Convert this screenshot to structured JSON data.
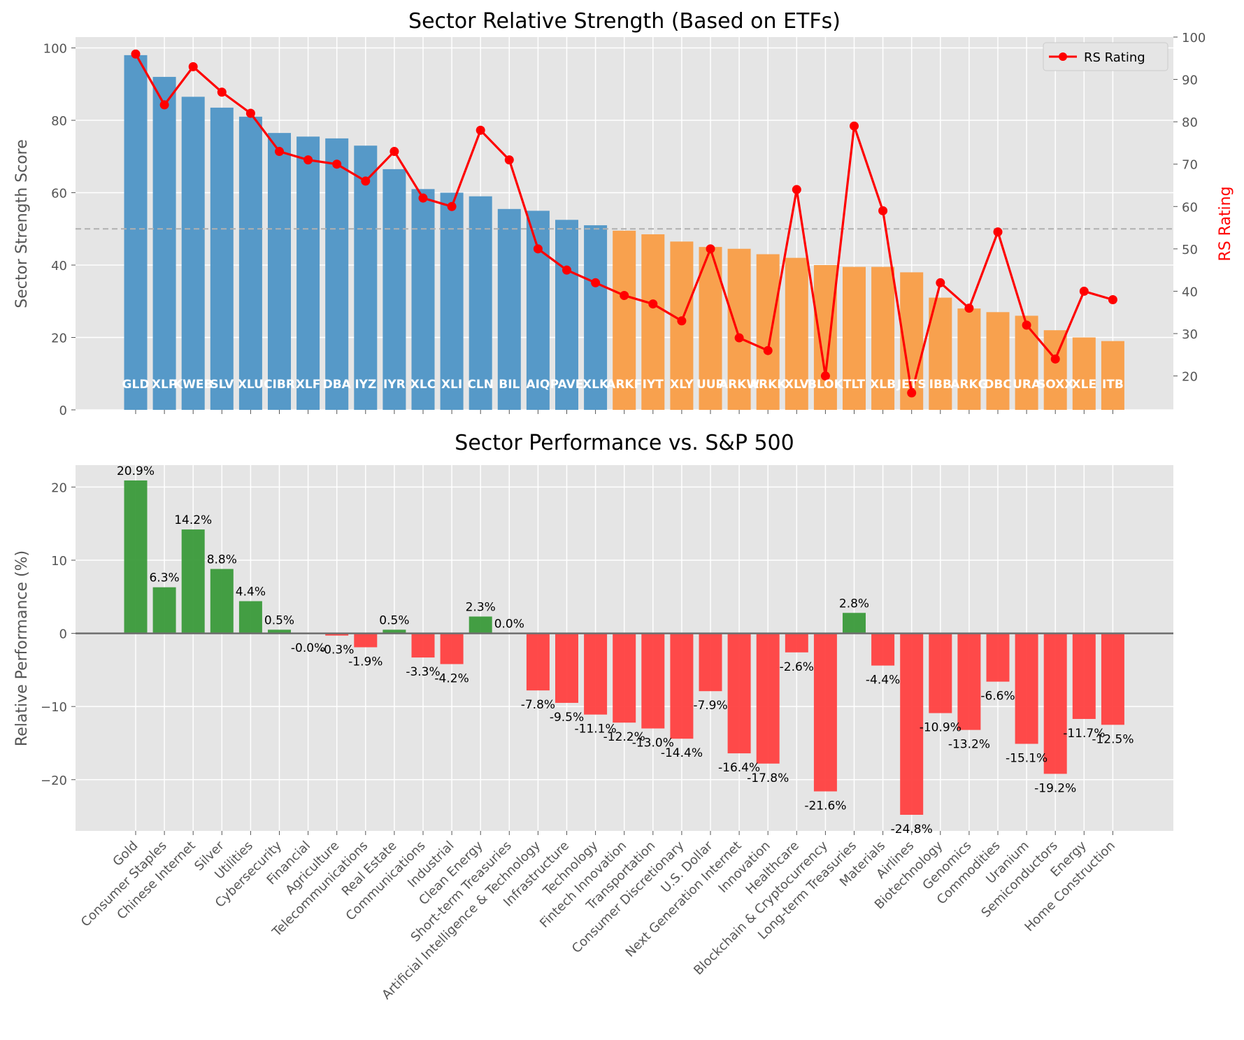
{
  "chart_data": [
    {
      "type": "bar",
      "title": "Sector Relative Strength (Based on ETFs)",
      "xlabel": "",
      "ylabel": "Sector Strength Score",
      "y2label": "RS Rating",
      "ylim": [
        0,
        103
      ],
      "y2lim": [
        12,
        100
      ],
      "yticks": [
        0,
        20,
        40,
        60,
        80,
        100
      ],
      "y2ticks": [
        20,
        30,
        40,
        50,
        60,
        70,
        80,
        90,
        100
      ],
      "reference_line": 50,
      "grid": true,
      "legend": "top-right",
      "colors": {
        "above": "#5699c8",
        "below": "#f8a14e",
        "line": "#ff0000",
        "bar_label": "#ffffff",
        "reference": "#b0b0b0"
      },
      "tickers": [
        "GLD",
        "XLP",
        "KWEB",
        "SLV",
        "XLU",
        "CIBR",
        "XLF",
        "DBA",
        "IYZ",
        "IYR",
        "XLC",
        "XLI",
        "CLN",
        "BIL",
        "AIQ",
        "PAVE",
        "XLK",
        "ARKF",
        "IYT",
        "XLY",
        "UUP",
        "ARKW",
        "ARKK",
        "XLV",
        "BLOK",
        "TLT",
        "XLB",
        "JETS",
        "IBB",
        "ARKG",
        "DBC",
        "URA",
        "SOXX",
        "XLE",
        "ITB"
      ],
      "series": [
        {
          "name": "Sector Strength Score",
          "values": [
            98,
            92,
            86.5,
            83.5,
            81,
            76.5,
            75.5,
            75,
            73,
            66.5,
            61,
            60,
            59,
            55.5,
            55,
            52.5,
            51,
            49.5,
            48.5,
            46.5,
            45,
            44.5,
            43,
            42,
            40,
            39.5,
            39.5,
            38,
            31,
            28,
            27,
            26,
            22,
            20,
            19
          ]
        },
        {
          "name": "RS Rating",
          "values": [
            96,
            84,
            93,
            87,
            82,
            73,
            71,
            70,
            66,
            73,
            62,
            60,
            78,
            71,
            50,
            45,
            42,
            39,
            37,
            33,
            50,
            29,
            26,
            64,
            20,
            79,
            59,
            16,
            42,
            36,
            54,
            32,
            24,
            40,
            38
          ]
        }
      ]
    },
    {
      "type": "bar",
      "title": "Sector Performance vs. S&P 500",
      "xlabel": "",
      "ylabel": "Relative Performance (%)",
      "ylim": [
        -27,
        23
      ],
      "yticks": [
        -20,
        -10,
        0,
        10,
        20
      ],
      "grid": true,
      "colors": {
        "positive": "#3a9a3a",
        "negative": "#ff4040"
      },
      "categories": [
        "Gold",
        "Consumer Staples",
        "Chinese Internet",
        "Silver",
        "Utilities",
        "Cybersecurity",
        "Financial",
        "Agriculture",
        "Telecommunications",
        "Real Estate",
        "Communications",
        "Industrial",
        "Clean Energy",
        "Short-term Treasuries",
        "Artificial Intelligence & Technology",
        "Infrastructure",
        "Technology",
        "Fintech Innovation",
        "Transportation",
        "Consumer Discretionary",
        "U.S. Dollar",
        "Next Generation Internet",
        "Innovation",
        "Healthcare",
        "Blockchain & Cryptocurrency",
        "Long-term Treasuries",
        "Materials",
        "Airlines",
        "Biotechnology",
        "Genomics",
        "Commodities",
        "Uranium",
        "Semiconductors",
        "Energy",
        "Home Construction"
      ],
      "values": [
        20.9,
        6.3,
        14.2,
        8.8,
        4.4,
        0.5,
        -0.02,
        -0.3,
        -1.9,
        0.5,
        -3.3,
        -4.2,
        2.3,
        0.0,
        -7.8,
        -9.5,
        -11.1,
        -12.2,
        -13.0,
        -14.4,
        -7.9,
        -16.4,
        -17.8,
        -2.6,
        -21.6,
        2.8,
        -4.4,
        -24.8,
        -10.9,
        -13.2,
        -6.6,
        -15.1,
        -19.2,
        -11.7,
        -12.5
      ],
      "labels": [
        "20.9%",
        "6.3%",
        "14.2%",
        "8.8%",
        "4.4%",
        "0.5%",
        "-0.0%",
        "-0.3%",
        "-1.9%",
        "0.5%",
        "-3.3%",
        "-4.2%",
        "2.3%",
        "0.0%",
        "-7.8%",
        "-9.5%",
        "-11.1%",
        "-12.2%",
        "-13.0%",
        "-14.4%",
        "-7.9%",
        "-16.4%",
        "-17.8%",
        "-2.6%",
        "-21.6%",
        "2.8%",
        "-4.4%",
        "-24.8%",
        "-10.9%",
        "-13.2%",
        "-6.6%",
        "-15.1%",
        "-19.2%",
        "-11.7%",
        "-12.5%"
      ]
    }
  ]
}
